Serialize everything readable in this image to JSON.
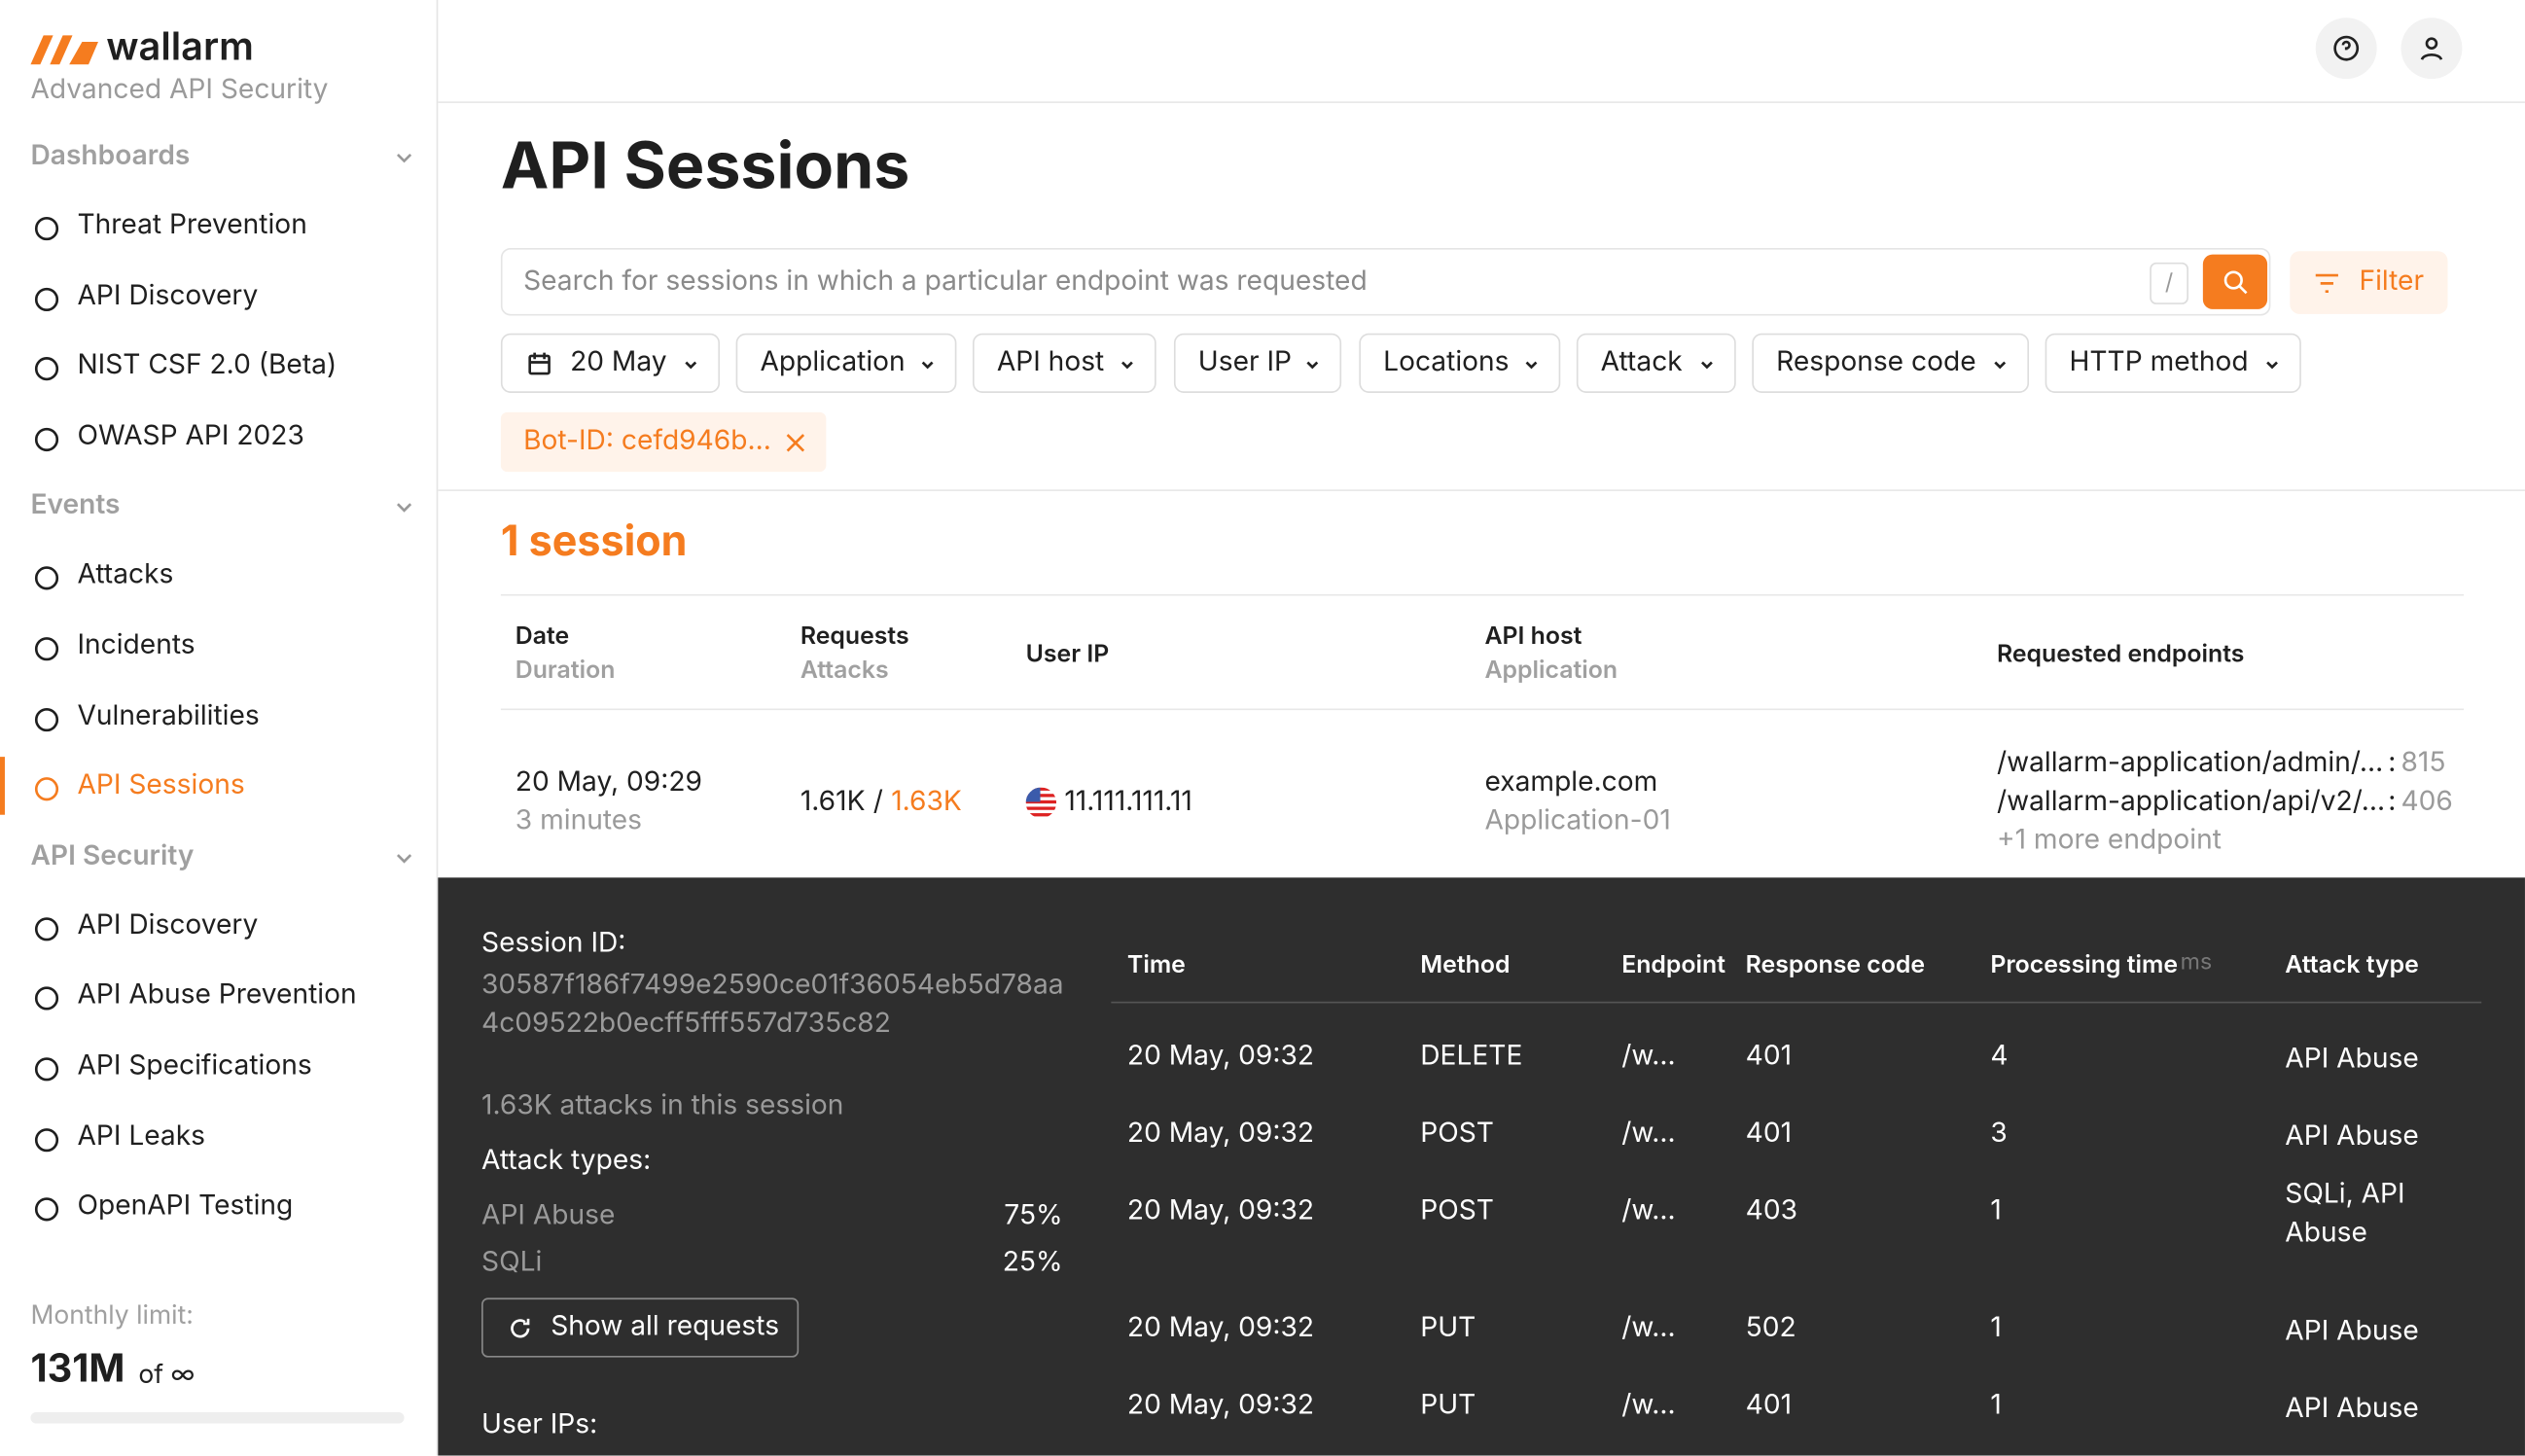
{
  "brand": {
    "name": "wallarm",
    "tagline": "Advanced API Security"
  },
  "nav": [
    {
      "section": "Dashboards",
      "items": [
        {
          "label": "Threat Prevention"
        },
        {
          "label": "API Discovery"
        },
        {
          "label": "NIST CSF 2.0 (Beta)"
        },
        {
          "label": "OWASP API 2023"
        }
      ]
    },
    {
      "section": "Events",
      "items": [
        {
          "label": "Attacks"
        },
        {
          "label": "Incidents"
        },
        {
          "label": "Vulnerabilities"
        },
        {
          "label": "API Sessions",
          "active": true
        }
      ]
    },
    {
      "section": "API Security",
      "items": [
        {
          "label": "API Discovery"
        },
        {
          "label": "API Abuse Prevention"
        },
        {
          "label": "API Specifications"
        },
        {
          "label": "API Leaks"
        },
        {
          "label": "OpenAPI Testing"
        }
      ]
    }
  ],
  "limit": {
    "label": "Monthly limit:",
    "value": "131M",
    "of": "of ∞"
  },
  "page": {
    "title": "API Sessions",
    "search_placeholder": "Search for sessions in which a particular endpoint was requested",
    "search_key": "/",
    "filter_button": "Filter",
    "filters": [
      "20 May",
      "Application",
      "API host",
      "User IP",
      "Locations",
      "Attack",
      "Response code",
      "HTTP method"
    ],
    "chip": "Bot-ID: cefd946b..."
  },
  "count": "1 session",
  "table": {
    "columns": [
      [
        "Date",
        "Duration"
      ],
      [
        "Requests",
        "Attacks"
      ],
      [
        "User IP"
      ],
      [
        "API host",
        "Application"
      ],
      [
        "Requested endpoints"
      ]
    ],
    "row": {
      "date": "20 May, 09:29",
      "duration": "3 minutes",
      "requests": "1.61K",
      "separator": "/",
      "attacks": "1.63K",
      "ip": "11.111.111.11",
      "host": "example.com",
      "app": "Application-01",
      "endpoint_separator": ":",
      "endpoints": [
        {
          "path": "/wallarm-application/admin/...",
          "count": "815"
        },
        {
          "path": "/wallarm-application/api/v2/...",
          "count": "406"
        }
      ],
      "more": "+1 more endpoint"
    }
  },
  "detail": {
    "session_label": "Session ID:",
    "session_id": "30587f186f7499e2590ce01f36054eb5d78aa4c09522b0ecff5fff557d735c82",
    "attacks_summary": "1.63K attacks in this session",
    "attack_types_label": "Attack types:",
    "attack_types": [
      {
        "name": "API Abuse",
        "share": "75%"
      },
      {
        "name": "SQLi",
        "share": "25%"
      }
    ],
    "show_all": "Show all requests",
    "user_ips_label": "User IPs:",
    "columns": [
      "Time",
      "Method",
      "Endpoint",
      "Response code",
      "Processing time",
      "Attack type"
    ],
    "time_unit": "ms",
    "rows": [
      [
        "20 May, 09:32",
        "DELETE",
        "/w...",
        "401",
        "4",
        "API Abuse"
      ],
      [
        "20 May, 09:32",
        "POST",
        "/w...",
        "401",
        "3",
        "API Abuse"
      ],
      [
        "20 May, 09:32",
        "POST",
        "/w...",
        "403",
        "1",
        "SQLi, API Abuse"
      ],
      [
        "20 May, 09:32",
        "PUT",
        "/w...",
        "502",
        "1",
        "API Abuse"
      ],
      [
        "20 May, 09:32",
        "PUT",
        "/w...",
        "401",
        "1",
        "API Abuse"
      ]
    ]
  }
}
